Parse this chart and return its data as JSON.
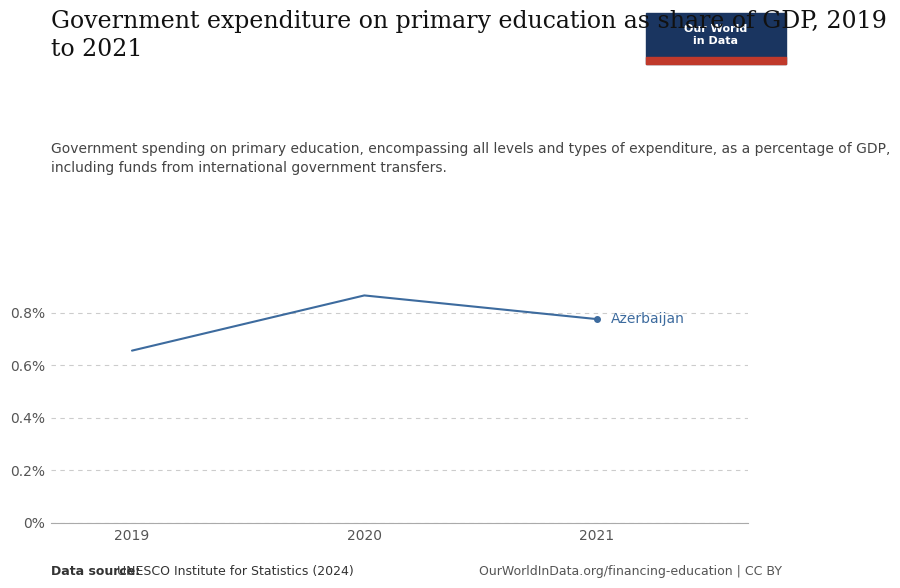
{
  "title_line1": "Government expenditure on primary education as share of GDP, 2019",
  "title_line2": "to 2021",
  "subtitle_line1": "Government spending on primary education, encompassing all levels and types of expenditure, as a percentage of GDP,",
  "subtitle_line2": "including funds from international government transfers.",
  "years": [
    2019,
    2020,
    2021
  ],
  "values": [
    0.00655,
    0.00865,
    0.00775
  ],
  "country_label": "Azerbaijan",
  "line_color": "#3d6b9e",
  "label_color": "#3d6b9e",
  "yticks": [
    0.0,
    0.002,
    0.004,
    0.006,
    0.008
  ],
  "ytick_labels": [
    "0%",
    "0.2%",
    "0.4%",
    "0.6%",
    "0.8%"
  ],
  "ylim": [
    0.0,
    0.0105
  ],
  "xlim": [
    2018.65,
    2021.65
  ],
  "grid_color": "#cccccc",
  "background_color": "#ffffff",
  "data_source_bold": "Data source:",
  "data_source_rest": " UNESCO Institute for Statistics (2024)",
  "credit": "OurWorldInData.org/financing-education | CC BY",
  "owid_box_color": "#1a3560",
  "owid_red": "#c0392b",
  "owid_text": "Our World\nin Data",
  "title_fontsize": 17,
  "subtitle_fontsize": 10,
  "tick_fontsize": 10,
  "label_fontsize": 10,
  "footer_fontsize": 9
}
